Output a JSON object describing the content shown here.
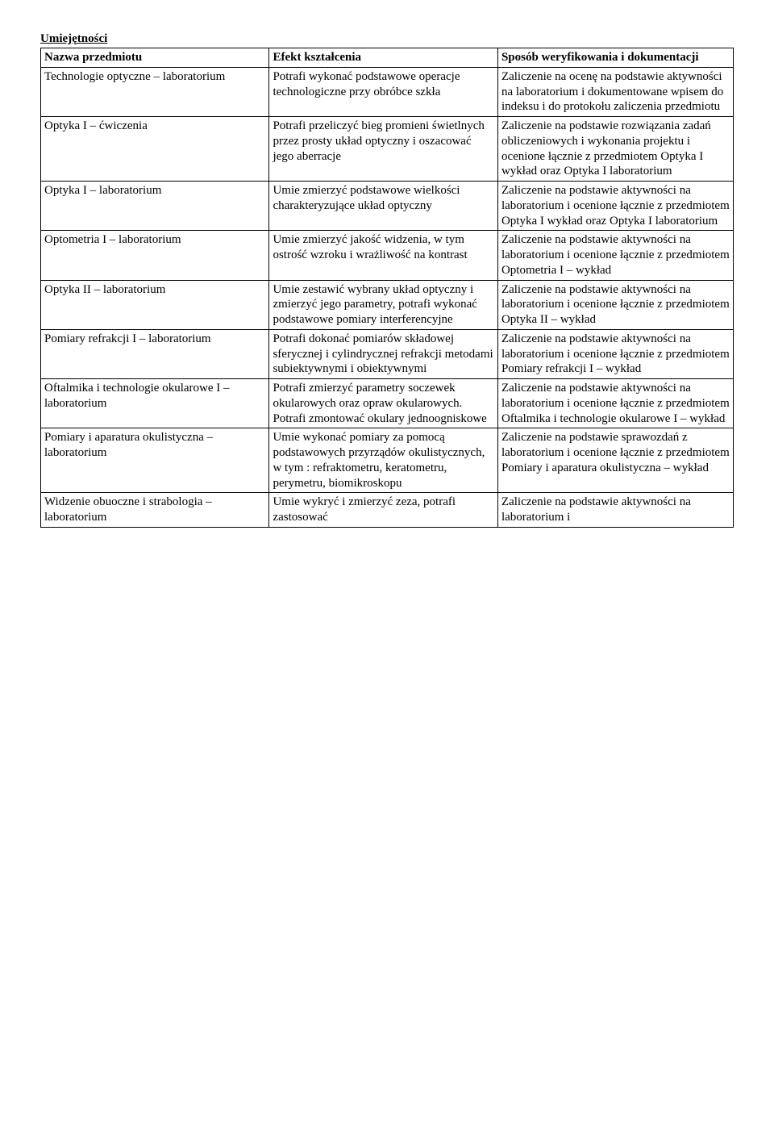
{
  "section_title": "Umiejętności",
  "table": {
    "columns": [
      "Nazwa przedmiotu",
      "Efekt kształcenia",
      "Sposób weryfikowania i dokumentacji"
    ],
    "rows": [
      {
        "c1": "Technologie optyczne – laboratorium",
        "c2": "Potrafi wykonać podstawowe operacje technologiczne przy obróbce szkła",
        "c3": "Zaliczenie na ocenę na podstawie aktywności na laboratorium i dokumentowane wpisem do indeksu i do protokołu zaliczenia przedmiotu"
      },
      {
        "c1": "Optyka I – ćwiczenia",
        "c2": "Potrafi przeliczyć bieg promieni świetlnych przez prosty układ optyczny i oszacować jego aberracje",
        "c3": "Zaliczenie na podstawie rozwiązania zadań obliczeniowych i wykonania projektu i ocenione łącznie z przedmiotem Optyka I wykład oraz Optyka I laboratorium"
      },
      {
        "c1": "Optyka I – laboratorium",
        "c2": "Umie zmierzyć podstawowe wielkości charakteryzujące układ optyczny",
        "c3": "Zaliczenie na podstawie aktywności na laboratorium i ocenione łącznie z przedmiotem Optyka I wykład oraz Optyka I laboratorium"
      },
      {
        "c1": "Optometria I – laboratorium",
        "c2": "Umie zmierzyć jakość widzenia, w tym ostrość wzroku i wrażliwość na kontrast",
        "c3": "Zaliczenie na podstawie aktywności na laboratorium i ocenione łącznie z przedmiotem Optometria I – wykład"
      },
      {
        "c1": "Optyka II – laboratorium",
        "c2": "Umie zestawić wybrany układ optyczny i zmierzyć jego parametry, potrafi wykonać podstawowe pomiary interferencyjne",
        "c3": "Zaliczenie na podstawie aktywności na laboratorium i ocenione łącznie z przedmiotem Optyka II – wykład"
      },
      {
        "c1": "Pomiary refrakcji I – laboratorium",
        "c2": "Potrafi dokonać pomiarów składowej sferycznej i cylindrycznej refrakcji metodami subiektywnymi i obiektywnymi",
        "c3": "Zaliczenie na podstawie aktywności na laboratorium i ocenione łącznie z przedmiotem Pomiary refrakcji I – wykład"
      },
      {
        "c1": "Oftalmika i technologie okularowe I – laboratorium",
        "c2": "Potrafi zmierzyć parametry soczewek okularowych oraz opraw okularowych. Potrafi zmontować okulary jednoogniskowe",
        "c3": "Zaliczenie na podstawie aktywności na laboratorium i ocenione łącznie z przedmiotem Oftalmika i technologie okularowe I – wykład"
      },
      {
        "c1": "Pomiary i aparatura okulistyczna – laboratorium",
        "c2": "Umie wykonać pomiary za pomocą podstawowych przyrządów okulistycznych, w tym : refraktometru, keratometru, perymetru, biomikroskopu",
        "c3": "Zaliczenie na podstawie sprawozdań z laboratorium i ocenione łącznie z przedmiotem Pomiary i aparatura okulistyczna – wykład"
      },
      {
        "c1": "Widzenie obuoczne i strabologia – laboratorium",
        "c2": "Umie wykryć i zmierzyć zeza, potrafi zastosować",
        "c3": "Zaliczenie na podstawie aktywności na laboratorium i"
      }
    ]
  },
  "style": {
    "font_family": "Times New Roman",
    "font_size_pt": 12,
    "text_color": "#000000",
    "background_color": "#ffffff",
    "border_color": "#000000"
  }
}
